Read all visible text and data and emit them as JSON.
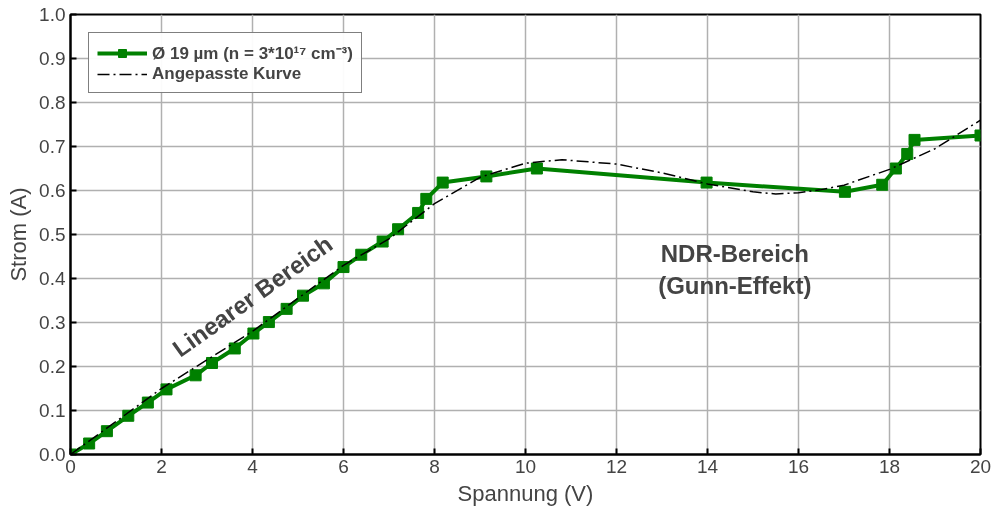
{
  "chart_data": {
    "type": "line",
    "xlabel": "Spannung (V)",
    "ylabel": "Strom (A)",
    "xlim": [
      0,
      20
    ],
    "ylim": [
      0,
      1.0
    ],
    "xticks": [
      0,
      2,
      4,
      6,
      8,
      10,
      12,
      14,
      16,
      18,
      20
    ],
    "yticks": [
      {
        "value": 0,
        "label": "0.0"
      },
      0.1,
      0.2,
      0.3,
      0.4,
      0.5,
      0.6,
      0.7,
      0.8,
      0.9,
      {
        "value": 1,
        "label": "1.0"
      }
    ],
    "grid": true,
    "legend": "top left",
    "series": [
      {
        "name": "Ø 19 µm (n = 3*10¹⁷ cm⁻³)",
        "color": "#008000",
        "marker": "square",
        "line_style": "solid",
        "x": [
          0,
          0.41,
          0.8,
          1.27,
          1.7,
          2.11,
          2.75,
          3.11,
          3.61,
          4.02,
          4.36,
          4.75,
          5.11,
          5.57,
          6.0,
          6.39,
          6.86,
          7.2,
          7.64,
          7.82,
          8.18,
          9.14,
          10.25,
          13.98,
          17.02,
          17.84,
          18.14,
          18.39,
          18.55,
          20
        ],
        "values": [
          0,
          0.025,
          0.053,
          0.088,
          0.118,
          0.148,
          0.18,
          0.208,
          0.241,
          0.275,
          0.301,
          0.331,
          0.361,
          0.389,
          0.426,
          0.454,
          0.484,
          0.512,
          0.549,
          0.581,
          0.618,
          0.632,
          0.65,
          0.618,
          0.597,
          0.613,
          0.65,
          0.683,
          0.715,
          0.725
        ]
      },
      {
        "name": "Angepasste Kurve",
        "color": "#000000",
        "marker": "none",
        "line_style": "dashdot",
        "x": [
          0,
          2,
          4,
          6,
          7,
          8,
          9,
          10,
          10.8,
          12,
          13,
          14,
          15,
          15.5,
          16,
          16.5,
          17,
          18,
          19,
          20
        ],
        "values": [
          0,
          0.15,
          0.28,
          0.43,
          0.49,
          0.57,
          0.63,
          0.662,
          0.67,
          0.66,
          0.64,
          0.615,
          0.597,
          0.592,
          0.595,
          0.602,
          0.612,
          0.648,
          0.695,
          0.76
        ]
      }
    ],
    "annotations": [
      "Linearer Bereich",
      "NDR-Bereich\n(Gunn-Effekt)"
    ]
  }
}
